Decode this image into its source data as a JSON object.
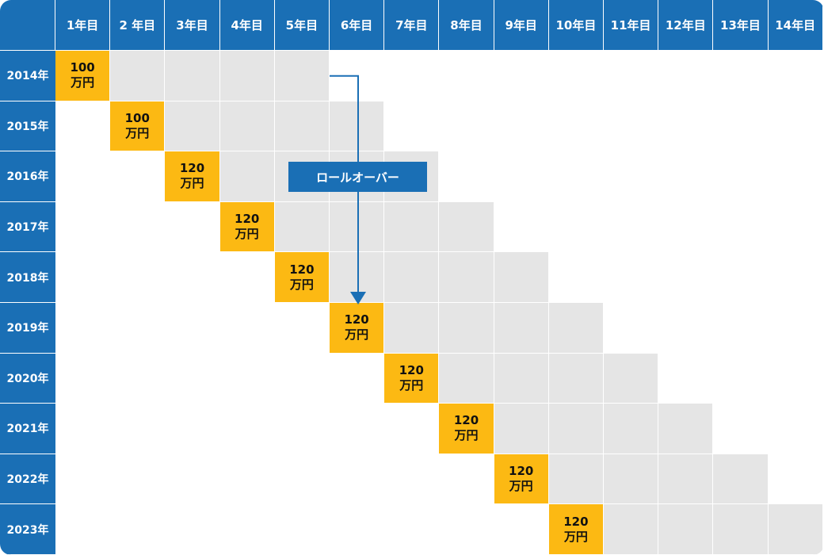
{
  "columns": [
    "1年目",
    "2 年目",
    "3年目",
    "4年目",
    "5年目",
    "6年目",
    "7年目",
    "8年目",
    "9年目",
    "10年目",
    "11年目",
    "12年目",
    "13年目",
    "14年目"
  ],
  "rows": [
    {
      "label": "2014年",
      "amount": "100",
      "unit": "万円"
    },
    {
      "label": "2015年",
      "amount": "100",
      "unit": "万円"
    },
    {
      "label": "2016年",
      "amount": "120",
      "unit": "万円"
    },
    {
      "label": "2017年",
      "amount": "120",
      "unit": "万円"
    },
    {
      "label": "2018年",
      "amount": "120",
      "unit": "万円"
    },
    {
      "label": "2019年",
      "amount": "120",
      "unit": "万円"
    },
    {
      "label": "2020年",
      "amount": "120",
      "unit": "万円"
    },
    {
      "label": "2021年",
      "amount": "120",
      "unit": "万円"
    },
    {
      "label": "2022年",
      "amount": "120",
      "unit": "万円"
    },
    {
      "label": "2023年",
      "amount": "120",
      "unit": "万円"
    }
  ],
  "holding_years": 5,
  "rollover": {
    "label": "ロールオーバー",
    "from_row": 0,
    "to_row": 5,
    "to_column": 5
  },
  "colors": {
    "header": "#1a6fb5",
    "amount": "#fcb913",
    "holding": "#e5e5e5",
    "arrow": "#1a6fb5"
  }
}
